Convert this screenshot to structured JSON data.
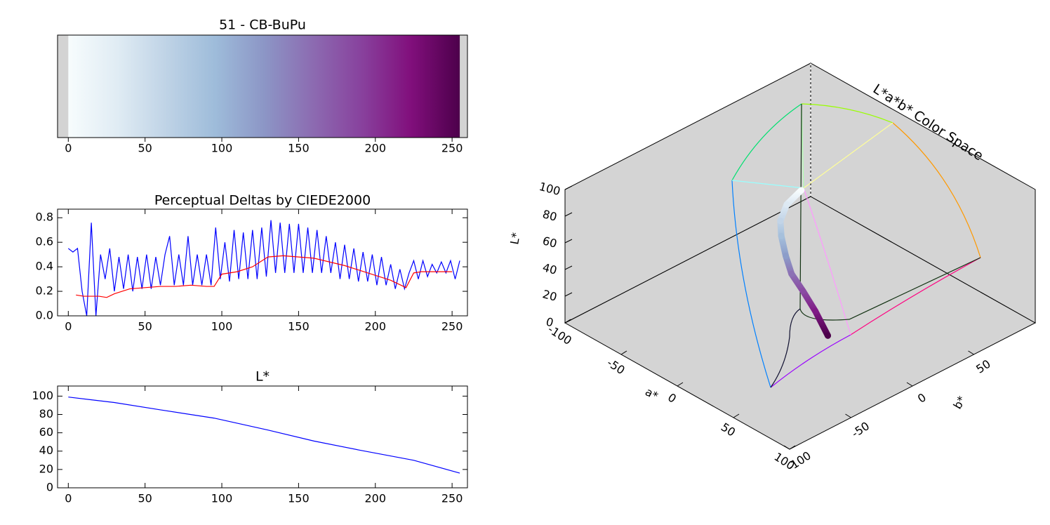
{
  "chart_data": [
    {
      "type": "colorbar",
      "title": "51 - CB-BuPu",
      "colors": [
        "#f7fcfd",
        "#e0ecf4",
        "#bfd3e6",
        "#9ebcda",
        "#8c96c6",
        "#8c6bb1",
        "#88419d",
        "#810f7c",
        "#4d004b"
      ],
      "extent": [
        0,
        255
      ],
      "xlim": [
        -7,
        260
      ],
      "xticks": [
        0,
        50,
        100,
        150,
        200,
        250
      ]
    },
    {
      "type": "line",
      "title": "Perceptual Deltas by CIEDE2000",
      "xlim": [
        -7,
        260
      ],
      "xticks": [
        0,
        50,
        100,
        150,
        200,
        250
      ],
      "ylim": [
        0,
        0.87
      ],
      "yticks": [
        {
          "value": 0,
          "label": "0.0"
        },
        0.2,
        0.4,
        0.6,
        0.8
      ],
      "series": [
        {
          "color": "#0000ff",
          "x": [
            0,
            3,
            6,
            9,
            12,
            15,
            18,
            21,
            24,
            27,
            30,
            33,
            36,
            39,
            42,
            45,
            48,
            51,
            54,
            57,
            60,
            63,
            66,
            69,
            72,
            75,
            78,
            81,
            84,
            87,
            90,
            93,
            96,
            99,
            102,
            105,
            108,
            111,
            114,
            117,
            120,
            123,
            126,
            129,
            132,
            135,
            138,
            141,
            144,
            147,
            150,
            153,
            156,
            159,
            162,
            165,
            168,
            171,
            174,
            177,
            180,
            183,
            186,
            189,
            192,
            195,
            198,
            201,
            204,
            207,
            210,
            213,
            216,
            219,
            222,
            225,
            228,
            231,
            234,
            237,
            240,
            243,
            246,
            249,
            252,
            255
          ],
          "values": [
            0.55,
            0.52,
            0.55,
            0.2,
            0.0,
            0.76,
            0.0,
            0.5,
            0.3,
            0.55,
            0.2,
            0.48,
            0.22,
            0.5,
            0.2,
            0.48,
            0.22,
            0.5,
            0.22,
            0.48,
            0.25,
            0.5,
            0.65,
            0.25,
            0.5,
            0.25,
            0.65,
            0.25,
            0.5,
            0.25,
            0.5,
            0.25,
            0.72,
            0.3,
            0.6,
            0.28,
            0.7,
            0.3,
            0.68,
            0.3,
            0.7,
            0.3,
            0.72,
            0.32,
            0.78,
            0.35,
            0.76,
            0.35,
            0.75,
            0.35,
            0.75,
            0.35,
            0.72,
            0.35,
            0.7,
            0.35,
            0.65,
            0.35,
            0.6,
            0.3,
            0.58,
            0.3,
            0.55,
            0.28,
            0.52,
            0.28,
            0.5,
            0.25,
            0.48,
            0.25,
            0.42,
            0.22,
            0.38,
            0.22,
            0.35,
            0.45,
            0.3,
            0.45,
            0.32,
            0.42,
            0.35,
            0.44,
            0.35,
            0.45,
            0.3,
            0.45
          ]
        },
        {
          "color": "#ff0000",
          "x": [
            5,
            10,
            15,
            20,
            25,
            30,
            35,
            40,
            50,
            60,
            70,
            80,
            90,
            95,
            100,
            110,
            120,
            130,
            140,
            150,
            160,
            170,
            180,
            190,
            200,
            210,
            215,
            220,
            225,
            230,
            240,
            250
          ],
          "values": [
            0.17,
            0.16,
            0.16,
            0.16,
            0.15,
            0.18,
            0.2,
            0.22,
            0.23,
            0.24,
            0.24,
            0.25,
            0.24,
            0.24,
            0.34,
            0.36,
            0.4,
            0.48,
            0.49,
            0.48,
            0.47,
            0.44,
            0.41,
            0.37,
            0.33,
            0.29,
            0.26,
            0.23,
            0.35,
            0.36,
            0.36,
            0.36
          ]
        }
      ]
    },
    {
      "type": "line",
      "title": "L*",
      "xlim": [
        -7,
        260
      ],
      "xticks": [
        0,
        50,
        100,
        150,
        200,
        250
      ],
      "ylim": [
        0,
        111
      ],
      "yticks": [
        0,
        20,
        40,
        60,
        80,
        100
      ],
      "series": [
        {
          "color": "#0000ff",
          "x": [
            0,
            30,
            60,
            95,
            130,
            160,
            190,
            225,
            255
          ],
          "values": [
            99,
            93,
            85,
            76,
            63,
            51,
            41,
            30,
            16
          ]
        }
      ]
    },
    {
      "type": "scatter3d",
      "title": "L*a*b* Color Space",
      "xlabel": "a*",
      "ylabel": "b*",
      "zlabel": "L*",
      "xlim": [
        -100,
        100
      ],
      "ylim": [
        -100,
        100
      ],
      "zlim": [
        0,
        100
      ],
      "xticks": [
        -100,
        -50,
        0,
        50,
        100
      ],
      "yticks": [
        -100,
        -50,
        0,
        50
      ],
      "zticks": [
        0,
        20,
        40,
        60,
        80,
        100
      ],
      "a": [
        0,
        -1,
        1,
        4,
        8,
        12,
        20,
        30,
        40
      ],
      "b": [
        1,
        -10,
        -17,
        -19,
        -19,
        -18,
        -16,
        -15,
        -14
      ],
      "L": [
        99,
        93,
        85,
        76,
        63,
        51,
        41,
        30,
        16
      ],
      "colors": [
        "#f7fcfd",
        "#dde9f3",
        "#c2d4e7",
        "#a6c0dc",
        "#8c9dc9",
        "#8c72b4",
        "#8a4ba3",
        "#7f1a85",
        "#4d004b"
      ]
    }
  ]
}
